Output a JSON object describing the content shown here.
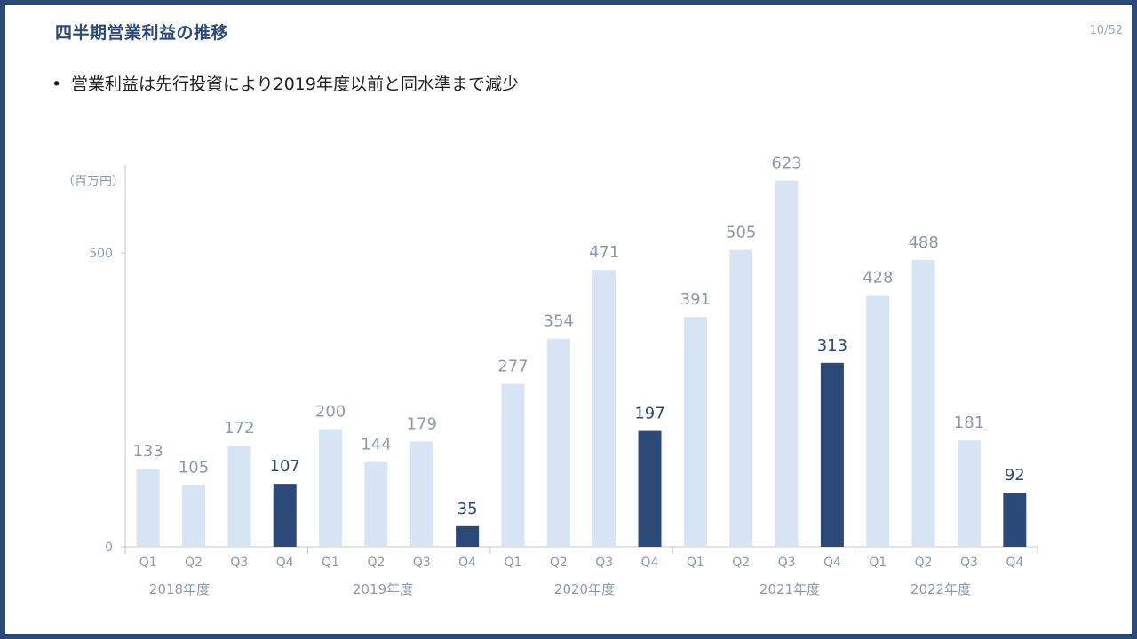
{
  "header": {
    "title": "四半期営業利益の推移",
    "page_number": "10/52"
  },
  "bullets": [
    {
      "text": "営業利益は先行投資により2019年度以前と同水準まで減少"
    }
  ],
  "colors": {
    "frame": "#2b4a78",
    "light_bar": "#d6e4f4",
    "dark_bar": "#2b4a78",
    "light_label": "#8c99ad",
    "dark_label": "#2b4a78"
  },
  "chart_data": {
    "type": "bar",
    "unit_label": "（百万円）",
    "ylim": [
      0,
      650
    ],
    "yticks": [
      0,
      500
    ],
    "groups": [
      "2018年度",
      "2019年度",
      "2020年度",
      "2021年度",
      "2022年度"
    ],
    "quarters": [
      "Q1",
      "Q2",
      "Q3",
      "Q4"
    ],
    "categories": [
      "Q1",
      "Q2",
      "Q3",
      "Q4",
      "Q1",
      "Q2",
      "Q3",
      "Q4",
      "Q1",
      "Q2",
      "Q3",
      "Q4",
      "Q1",
      "Q2",
      "Q3",
      "Q4",
      "Q1",
      "Q2",
      "Q3",
      "Q4"
    ],
    "values": [
      133,
      105,
      172,
      107,
      200,
      144,
      179,
      35,
      277,
      354,
      471,
      197,
      391,
      505,
      623,
      313,
      428,
      488,
      181,
      92
    ],
    "highlight": "Q4"
  }
}
